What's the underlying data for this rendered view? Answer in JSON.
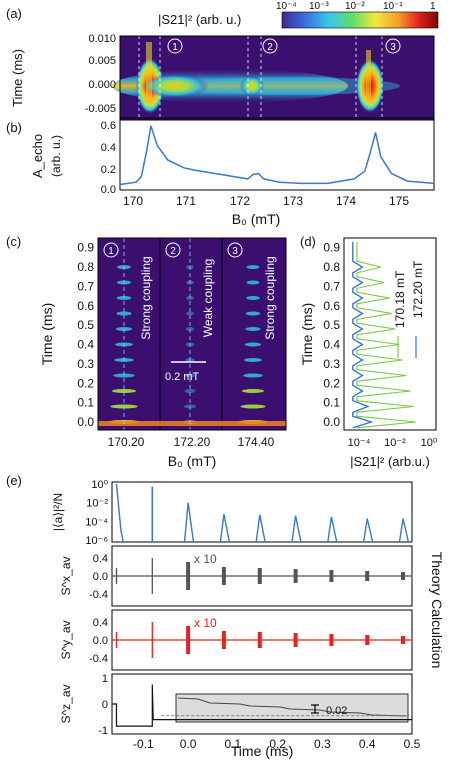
{
  "panel_labels": [
    "(a)",
    "(b)",
    "(c)",
    "(d)",
    "(e)"
  ],
  "colorbar": {
    "title": "|S21|² (arb. u.)",
    "ticks": [
      "10⁻⁴",
      "10⁻³",
      "10⁻²",
      "10⁻¹",
      "1"
    ]
  },
  "labels": {
    "a_ylabel": "Time (ms)",
    "b_ylabel_1": "A_echo",
    "b_ylabel_2": "(arb. u.)",
    "ab_xlabel": "B₀ (mT)",
    "c_ylabel": "Time (ms)",
    "c_xlabel": "B₀ (mT)",
    "c_scalebar": "0.2 mT",
    "c_strong1": "Strong coupling",
    "c_weak": "Weak coupling",
    "c_strong3": "Strong coupling",
    "d_ylabel": "Time (ms)",
    "d_xlabel": "|S21|² (arb.u.)",
    "d_legend_1": "170.18 mT",
    "d_legend_2": "172.20 mT",
    "e_ylabel_1": "|⟨a⟩|²/N",
    "e_ylabel_2": "S^x_av",
    "e_ylabel_3": "S^y_av",
    "e_ylabel_4": "S^z_av",
    "e_xlabel": "Time (ms)",
    "e_side": "Theory Calculation",
    "e_x10_2": "x 10",
    "e_x10_3": "x 10",
    "e_inset": "0.02"
  },
  "markers": [
    "1",
    "2",
    "3"
  ],
  "colors": {
    "line_blue": "#3b78c8",
    "line_green": "#7cc84a",
    "line_red": "#e8231b",
    "line_gray": "#555555",
    "map_bg": "#3b0f70"
  },
  "chart_data": [
    {
      "panel": "a",
      "type": "heatmap",
      "x_range": [
        169.6,
        175.5
      ],
      "y_range": [
        -0.005,
        0.01
      ],
      "yticks": [
        "0.010",
        "0.005",
        "0.000",
        "-0.005"
      ],
      "resonances_mT": [
        170.18,
        172.2,
        174.4
      ],
      "color_scale": "log",
      "z_range": [
        0.0001,
        1
      ]
    },
    {
      "panel": "b",
      "type": "line",
      "xlabel": "B₀ (mT)",
      "ylim": [
        0,
        0.65
      ],
      "xticks": [
        "170",
        "171",
        "172",
        "173",
        "174",
        "175"
      ],
      "yticks": [
        "0.0",
        "0.2",
        "0.4",
        "0.6"
      ],
      "x": [
        169.6,
        169.9,
        170.0,
        170.1,
        170.18,
        170.3,
        170.5,
        170.8,
        171.0,
        171.5,
        172.0,
        172.1,
        172.2,
        172.3,
        172.6,
        173.0,
        173.5,
        174.0,
        174.2,
        174.3,
        174.4,
        174.5,
        174.7,
        175.0,
        175.5
      ],
      "values": [
        0.05,
        0.07,
        0.12,
        0.35,
        0.58,
        0.4,
        0.27,
        0.2,
        0.18,
        0.14,
        0.1,
        0.14,
        0.15,
        0.1,
        0.07,
        0.06,
        0.06,
        0.1,
        0.17,
        0.33,
        0.52,
        0.3,
        0.15,
        0.08,
        0.06
      ]
    },
    {
      "panel": "c",
      "type": "heatmap",
      "yticks": [
        "0.9",
        "0.8",
        "0.7",
        "0.6",
        "0.5",
        "0.4",
        "0.3",
        "0.2",
        "0.1",
        "0.0"
      ],
      "xticks": [
        "170.20",
        "172.20",
        "174.40"
      ],
      "y_range": [
        0,
        0.95
      ],
      "echo_times_ms": [
        0.0,
        0.08,
        0.16,
        0.24,
        0.32,
        0.4,
        0.48,
        0.56,
        0.64,
        0.72,
        0.8
      ]
    },
    {
      "panel": "d",
      "type": "line",
      "x_scale": "log",
      "xticks": [
        "10⁻⁴",
        "10⁻²",
        "10⁰"
      ],
      "xlim": [
        1e-05,
        1
      ],
      "ylim": [
        0,
        0.95
      ],
      "series": [
        {
          "name": "170.18 mT",
          "echo_times_ms": [
            0.0,
            0.08,
            0.16,
            0.24,
            0.32,
            0.4,
            0.48,
            0.56,
            0.64,
            0.72,
            0.8
          ],
          "peak_values": [
            0.08,
            0.06,
            0.04,
            0.025,
            0.015,
            0.01,
            0.006,
            0.004,
            0.003,
            0.0015,
            0.001
          ]
        },
        {
          "name": "172.20 mT",
          "echo_times_ms": [
            0.0,
            0.08,
            0.16,
            0.24,
            0.32,
            0.4,
            0.48,
            0.56,
            0.64,
            0.72,
            0.8
          ],
          "peak_values": [
            0.0003,
            0.0002,
            0.0001,
            0.0001,
            0.0001,
            0.0001,
            0.0001,
            0.0001,
            0.0001,
            0.0001,
            0.0001
          ]
        }
      ]
    },
    {
      "panel": "e",
      "type": "line",
      "xlim": [
        -0.17,
        0.5
      ],
      "xticks": [
        "-0.1",
        "0.0",
        "0.1",
        "0.2",
        "0.3",
        "0.4",
        "0.5"
      ],
      "pulse_times_ms": [
        -0.16,
        -0.08
      ],
      "echo_times_ms": [
        0.0,
        0.08,
        0.16,
        0.24,
        0.32,
        0.4,
        0.48
      ],
      "rows": [
        {
          "name": "|⟨a⟩|²/N",
          "yticks": [
            "10⁰",
            "10⁻²",
            "10⁻⁴",
            "10⁻⁶"
          ],
          "echo_peaks": [
            0.01,
            0.0006,
            0.0005,
            0.0004,
            0.0003,
            0.0002,
            0.0002
          ]
        },
        {
          "name": "S^x_av",
          "yticks": [
            "0.4",
            "0.0",
            "-0.4"
          ]
        },
        {
          "name": "S^y_av",
          "yticks": [
            "0.4",
            "0.0",
            "-0.4"
          ]
        },
        {
          "name": "S^z_av",
          "yticks": [
            "1",
            "0",
            "-1"
          ]
        }
      ]
    }
  ]
}
